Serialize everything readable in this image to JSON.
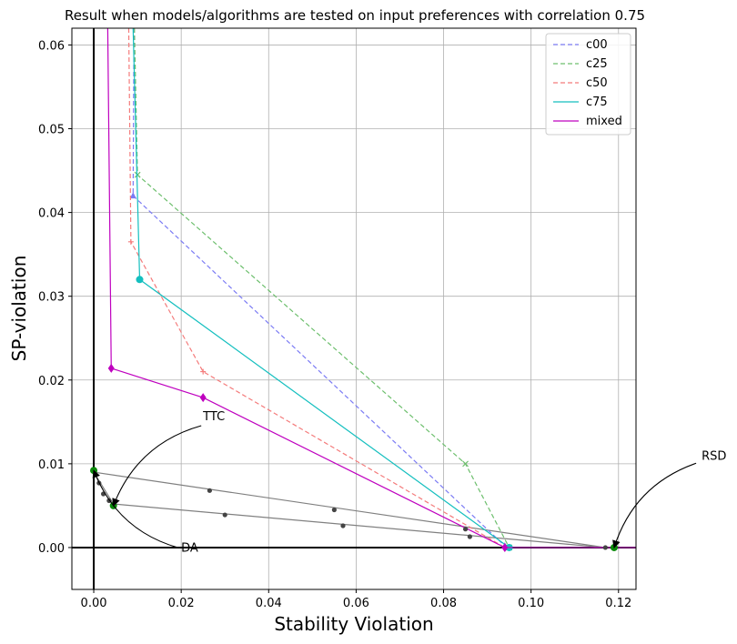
{
  "chart_data": {
    "type": "line",
    "title": "Result when models/algorithms are tested on input preferences with correlation 0.75",
    "xlabel": "Stability Violation",
    "ylabel": "SP-violation",
    "xlim": [
      -0.005,
      0.124
    ],
    "ylim": [
      -0.005,
      0.062
    ],
    "xticks": [
      0.0,
      0.02,
      0.04,
      0.06,
      0.08,
      0.1,
      0.12
    ],
    "xtick_labels": [
      "0.00",
      "0.02",
      "0.04",
      "0.06",
      "0.08",
      "0.10",
      "0.12"
    ],
    "yticks": [
      0.0,
      0.01,
      0.02,
      0.03,
      0.04,
      0.05,
      0.06
    ],
    "ytick_labels": [
      "0.00",
      "0.01",
      "0.02",
      "0.03",
      "0.04",
      "0.05",
      "0.06"
    ],
    "grid": true,
    "legend_position": "top-right",
    "series": [
      {
        "name": "c00",
        "color": "#7b7bf4",
        "dashed": true,
        "marker": "triangle",
        "points": [
          [
            0.0092,
            0.062
          ],
          [
            0.009,
            0.042
          ],
          [
            0.094,
            0.0002
          ],
          [
            0.095,
            0.0
          ]
        ]
      },
      {
        "name": "c25",
        "color": "#6dbf6d",
        "dashed": true,
        "marker": "x",
        "points": [
          [
            0.0093,
            0.062
          ],
          [
            0.01,
            0.0445
          ],
          [
            0.085,
            0.01
          ],
          [
            0.095,
            0.0
          ]
        ]
      },
      {
        "name": "c50",
        "color": "#f47b7b",
        "dashed": true,
        "marker": "plus",
        "points": [
          [
            0.008,
            0.062
          ],
          [
            0.0085,
            0.0365
          ],
          [
            0.025,
            0.021
          ],
          [
            0.094,
            0.0
          ]
        ]
      },
      {
        "name": "c75",
        "color": "#14bfbf",
        "dashed": false,
        "marker": "circle",
        "points": [
          [
            0.009,
            0.062
          ],
          [
            0.0105,
            0.032
          ],
          [
            0.095,
            0.0
          ]
        ]
      },
      {
        "name": "mixed",
        "color": "#bf00bf",
        "dashed": false,
        "marker": "diamond",
        "points": [
          [
            0.0032,
            0.062
          ],
          [
            0.004,
            0.0214
          ],
          [
            0.025,
            0.0179
          ],
          [
            0.094,
            0.0
          ],
          [
            0.124,
            0.0
          ]
        ]
      }
    ],
    "gray_lines": [
      {
        "color": "#808080",
        "points": [
          [
            0.0,
            0.009
          ],
          [
            0.117,
            0.0
          ]
        ]
      },
      {
        "color": "#808080",
        "points": [
          [
            0.0045,
            0.0052
          ],
          [
            0.117,
            0.0
          ]
        ]
      },
      {
        "color": "#808080",
        "points": [
          [
            0.0,
            0.009
          ],
          [
            0.0045,
            0.0052
          ]
        ]
      }
    ],
    "dark_points": [
      [
        0.0012,
        0.0077
      ],
      [
        0.0022,
        0.0064
      ],
      [
        0.0035,
        0.0056
      ],
      [
        0.0265,
        0.0068
      ],
      [
        0.03,
        0.0039
      ],
      [
        0.055,
        0.0045
      ],
      [
        0.057,
        0.0026
      ],
      [
        0.085,
        0.0022
      ],
      [
        0.086,
        0.0013
      ],
      [
        0.117,
        0.0
      ]
    ],
    "green_points": [
      [
        0.0,
        0.0092
      ],
      [
        0.0045,
        0.005
      ],
      [
        0.119,
        0.0
      ]
    ],
    "annotations": [
      {
        "text": "TTC",
        "x": 0.025,
        "y": 0.0152,
        "target": [
          0.0045,
          0.005
        ],
        "text_anchor": "start"
      },
      {
        "text": "DA",
        "x": 0.02,
        "y": -0.0005,
        "target": [
          0.0,
          0.0092
        ],
        "text_anchor": "start"
      },
      {
        "text": "RSD",
        "x": 0.139,
        "y": 0.0105,
        "target": [
          0.119,
          0.0
        ],
        "text_anchor": "start"
      }
    ]
  }
}
